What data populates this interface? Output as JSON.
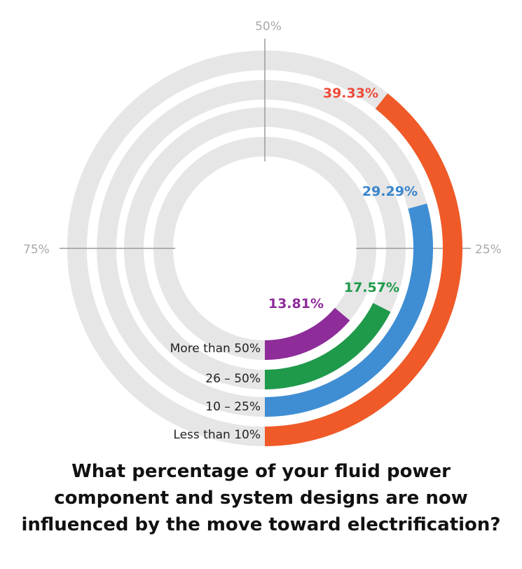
{
  "chart_data": {
    "type": "radial-bar",
    "axis_ticks": [
      "50%",
      "75%",
      "25%"
    ],
    "series": [
      {
        "name": "Less than 10%",
        "value": 39.33,
        "value_label": "39.33%",
        "color": "#ef5a28"
      },
      {
        "name": "10 – 25%",
        "value": 29.29,
        "value_label": "29.29%",
        "color": "#3f8ed3"
      },
      {
        "name": "26 – 50%",
        "value": 17.57,
        "value_label": "17.57%",
        "color": "#1f9a4b"
      },
      {
        "name": "More than 50%",
        "value": 13.81,
        "value_label": "13.81%",
        "color": "#8e2c9a"
      }
    ],
    "track_color": "#e6e6e6",
    "max": 100
  },
  "question": {
    "line1": "What percentage of your fluid power",
    "line2": "component and system designs are now",
    "line3": "influenced by the move toward electrification?"
  }
}
